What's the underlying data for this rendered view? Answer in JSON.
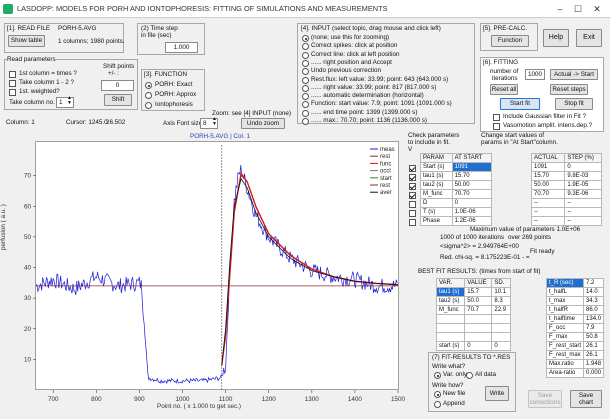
{
  "window": {
    "title": "LASDOPP: MODELS FOR PORH AND IONTOPHORESIS: FITTING OF SIMULATIONS AND MEASUREMENTS",
    "minimize": "–",
    "maximize": "☐",
    "close": "✕"
  },
  "readfile": {
    "label": "[1]. READ FILE",
    "filename": "PORH-5.AVG",
    "show_table": "Show table",
    "info": "1 columns; 1980 points."
  },
  "read_params": {
    "label": "Read parameters",
    "opt1": "1st column = times ?",
    "opt2": "Take column 1 - 2 ?",
    "opt3": "1st. weighted?",
    "take_col_label": "Take column no.",
    "take_col_value": "1",
    "shift_label1": "Shift points",
    "shift_label2": "+/- :",
    "shift_value": "0",
    "shift_button": "Shift"
  },
  "status": {
    "column": "Column: 1",
    "cursor": "Cursor: 1245.0",
    "cursor_y": "26.502"
  },
  "timestep": {
    "label1": "(2) Time step",
    "label2": "in file (sec)",
    "value": "1.000"
  },
  "function": {
    "label": "[3]. FUNCTION",
    "opt1": "PORH: Exact",
    "opt2": "PORH: Approx",
    "opt3": "Iontophoresis",
    "selected": "PORH: Exact"
  },
  "axis": {
    "zoom_label": "Zoom: see [4] INPUT (none)",
    "font_label": "Axis Font size",
    "font_value": "8",
    "undo_zoom": "Undo zoom"
  },
  "input": {
    "label": "[4]. INPUT (select topic, drag mouse and click left)",
    "opts": [
      "(none; use this for zooming)",
      "Correct spikes: click at position",
      "Correct line: click at left position",
      "......     right position and Accept",
      "Undo previous correction",
      "Rest.flux: left  value:  33.99;  point:  643 (643.000 s)",
      "......     right  value:  33.99;  point:  817 (817.000 s)",
      "......     automatic determination (horizontal)",
      "Function: start value:    7.9;  point:  1091 (1091.000 s)",
      "......     end time point:  1399 (1399.000 s)",
      "......     max.:      70.70; point:  1136 (1136.000 s)"
    ]
  },
  "precalc": {
    "label": "[5]. PRE-CALC.",
    "button": "Function"
  },
  "top_buttons": {
    "help": "Help",
    "exit": "Exit"
  },
  "fitting": {
    "label": "[6]. FITTING",
    "iter_label1": "number of",
    "iter_label2": "iterations",
    "iter_value": "1000",
    "actual_start": "Actual -> Start",
    "reset_all": "Reset all",
    "reset_steps": "Reset steps",
    "start_fit": "Start fit",
    "stop_fit": "Stop fit",
    "gauss": "Include Gaussian filter in Fit ?",
    "vasomotion": "Vasomotion amplit. intens.dep.?"
  },
  "plot": {
    "title": "PORH-5.AVG  |  Col. 1",
    "ylabel": "perfusion  ( a.u. )",
    "xlabel": "Point no.  ( x  1.000 to get sec.)"
  },
  "chart_data": {
    "type": "line",
    "title": "PORH-5.AVG  |  Col. 1",
    "xlabel": "Point no.  ( x  1.000 to get sec.)",
    "ylabel": "perfusion  ( a.u. )",
    "xlim": [
      660,
      1500
    ],
    "ylim": [
      0,
      80
    ],
    "xticks": [
      700,
      800,
      900,
      1000,
      1100,
      1200,
      1300,
      1400,
      1500
    ],
    "yticks": [
      10,
      20,
      30,
      40,
      50,
      60,
      70
    ],
    "legend_position": "top-right",
    "legend": [
      "meas",
      "rest",
      "func",
      "occl",
      "start",
      "rest",
      "aver"
    ],
    "series": [
      {
        "name": "meas",
        "color": "#1b1bd6",
        "values_desc": "measured perfusion signal",
        "x": [
          660,
          700,
          750,
          800,
          850,
          900,
          905,
          920,
          950,
          1000,
          1050,
          1090,
          1100,
          1110,
          1120,
          1130,
          1136,
          1150,
          1170,
          1200,
          1250,
          1300,
          1350,
          1400,
          1450,
          1500
        ],
        "y": [
          34,
          36,
          33,
          37,
          34,
          35,
          34,
          4,
          3,
          3,
          3,
          4,
          8,
          40,
          62,
          70,
          72,
          66,
          57,
          50,
          43,
          39,
          37,
          36,
          34,
          34
        ]
      },
      {
        "name": "func",
        "color": "#d21818",
        "x": [
          1091,
          1100,
          1110,
          1120,
          1136,
          1150,
          1170,
          1200,
          1250,
          1300,
          1350,
          1400,
          1450,
          1500
        ],
        "y": [
          7.9,
          18,
          38,
          58,
          70.7,
          68,
          60,
          51,
          44,
          39.5,
          37,
          35.5,
          34.8,
          34.4
        ]
      },
      {
        "name": "aver",
        "color": "#111",
        "x": [
          1091,
          1100,
          1110,
          1120,
          1136,
          1150,
          1170,
          1200,
          1250,
          1300,
          1350,
          1400,
          1450,
          1500
        ],
        "y": [
          8,
          20,
          42,
          60,
          69,
          66,
          58,
          50,
          43,
          39,
          37,
          35.5,
          34.8,
          34.4
        ]
      },
      {
        "name": "rest",
        "color": "#8b2b2b",
        "x": [
          660,
          1500
        ],
        "y": [
          33.99,
          33.99
        ]
      },
      {
        "name": "occl",
        "color": "#777",
        "x": [
          1091,
          1091
        ],
        "y": [
          0,
          80
        ]
      }
    ]
  },
  "check_params": {
    "l1": "Check parameters",
    "l2": "to include in fit.",
    "l3": "V"
  },
  "change_start": {
    "l1": "Change start values of",
    "l2": "params in \"At Start\"column."
  },
  "param_table": {
    "headers": [
      "PARAM",
      "AT START"
    ],
    "rows": [
      [
        "Start (s)",
        "1091"
      ],
      [
        "tau1 (s)",
        "15.70"
      ],
      [
        "tau2 (s)",
        "50.00"
      ],
      [
        "M_func",
        "70.70"
      ],
      [
        "D",
        "0"
      ],
      [
        "T (s)",
        "1.0E-06"
      ],
      [
        "Phase",
        "1.2E-06"
      ]
    ],
    "checked": [
      true,
      true,
      true,
      true,
      false,
      false,
      false
    ]
  },
  "actual_table": {
    "headers": [
      "ACTUAL",
      "STEP (%)"
    ],
    "rows": [
      [
        "1091",
        "0"
      ],
      [
        "15.70",
        "9.8E-03"
      ],
      [
        "50.00",
        "1.9E-05"
      ],
      [
        "70.70",
        "9.3E-06"
      ],
      [
        "--",
        "--"
      ],
      [
        "--",
        "--"
      ],
      [
        "--",
        "--"
      ]
    ]
  },
  "fit_status": {
    "max_val": "Maximum value of parameters 1.0E+06",
    "iters": "1000 of 1000 iterations",
    "points": "over 269 points",
    "sigma": "<sigma^2> = 2.949764E+00",
    "ready": "Fit ready",
    "chisq": "Red. chi-sq. =  8.175223E-01 -  ="
  },
  "best_fit": {
    "label": "BEST FIT RESULTS:  (times from start of fit)",
    "headers": [
      "VAR.",
      "VALUE",
      "SD."
    ],
    "rows": [
      [
        "tau1 (s)",
        "15.7",
        "10.1"
      ],
      [
        "tau2 (s)",
        "50.0",
        "8.3"
      ],
      [
        "M_func",
        "70.7",
        "22.9"
      ]
    ],
    "last_row": [
      "start (s)",
      "0",
      "0"
    ]
  },
  "results": {
    "rows": [
      [
        "t_R   (sec)",
        "7.2"
      ],
      [
        "t_halfL",
        "14.0"
      ],
      [
        "t_max",
        "34.3"
      ],
      [
        "t_halfR",
        "86.0"
      ],
      [
        "t_halftime",
        "134.0"
      ],
      [
        "F_occ",
        "7.9"
      ],
      [
        "F_max",
        "50.8"
      ],
      [
        "F_rest_start",
        "26.1"
      ],
      [
        "F_rest_max",
        "26.1"
      ],
      [
        "Max.ratio",
        "1.948"
      ],
      [
        "Area-ratio",
        "0.000"
      ]
    ]
  },
  "fit_results_file": {
    "label": "(7)  FIT-RESULTS TO *.RES",
    "write_what": "Write what?",
    "var_only": "Var. only",
    "all_data": "All data",
    "write_how": "Write how?",
    "new_file": "New file",
    "append": "Append",
    "write_button": "Write",
    "save_corrections": "Save corrections",
    "save_chart": "Save chart"
  }
}
